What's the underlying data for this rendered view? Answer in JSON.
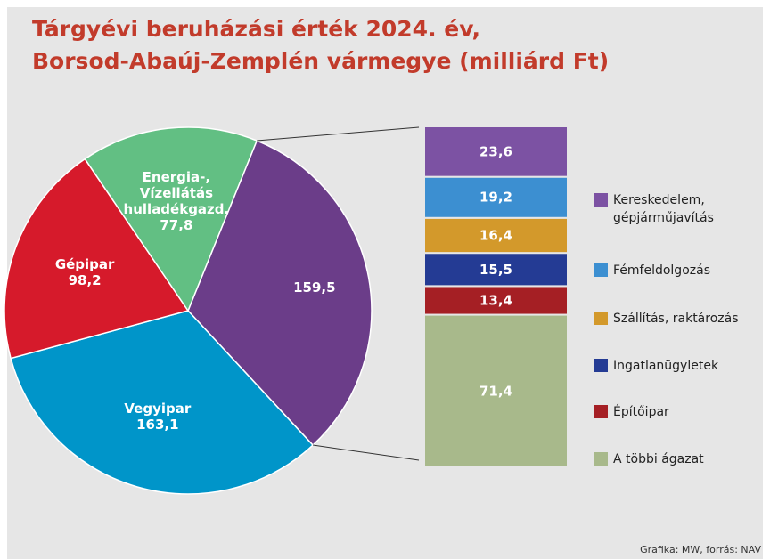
{
  "chart_data": [
    {
      "type": "pie",
      "title": [
        "Tárgyévi beruházási érték 2024. év,",
        "Borsod-Abaúj-Zemplén vármegye (milliárd Ft)"
      ],
      "categories": [
        null,
        "Vegyipar",
        "Gépipar",
        "Energia-, Vízellátás hulladékgazd."
      ],
      "values": [
        159.5,
        163.1,
        98.2,
        77.8
      ],
      "value_labels": [
        "159,5",
        "163,1",
        "98,2",
        "77,8"
      ],
      "colors": [
        "#6b3d89",
        "#0095c9",
        "#d61a2b",
        "#62bf83"
      ],
      "source": "Grafika: MW, forrás: NAV"
    },
    {
      "type": "stacked-bar",
      "series": [
        {
          "name": "Kereskedelem, gépjárműjavítás",
          "color": "#7c52a3",
          "values": [
            23.6
          ],
          "value_labels": [
            "23,6"
          ]
        },
        {
          "name": "Fémfeldolgozás",
          "color": "#3c8fd1",
          "values": [
            19.2
          ],
          "value_labels": [
            "19,2"
          ]
        },
        {
          "name": "Szállítás, raktározás",
          "color": "#d3992b",
          "values": [
            16.4
          ],
          "value_labels": [
            "16,4"
          ]
        },
        {
          "name": "Ingatlanügyletek",
          "color": "#243b94",
          "values": [
            15.5
          ],
          "value_labels": [
            "15,5"
          ]
        },
        {
          "name": "Építőipar",
          "color": "#a51f24",
          "values": [
            13.4
          ],
          "value_labels": [
            "13,4"
          ]
        },
        {
          "name": "A többi ágazat",
          "color": "#a8b98b",
          "values": [
            71.4
          ],
          "value_labels": [
            "71,4"
          ]
        }
      ]
    }
  ]
}
